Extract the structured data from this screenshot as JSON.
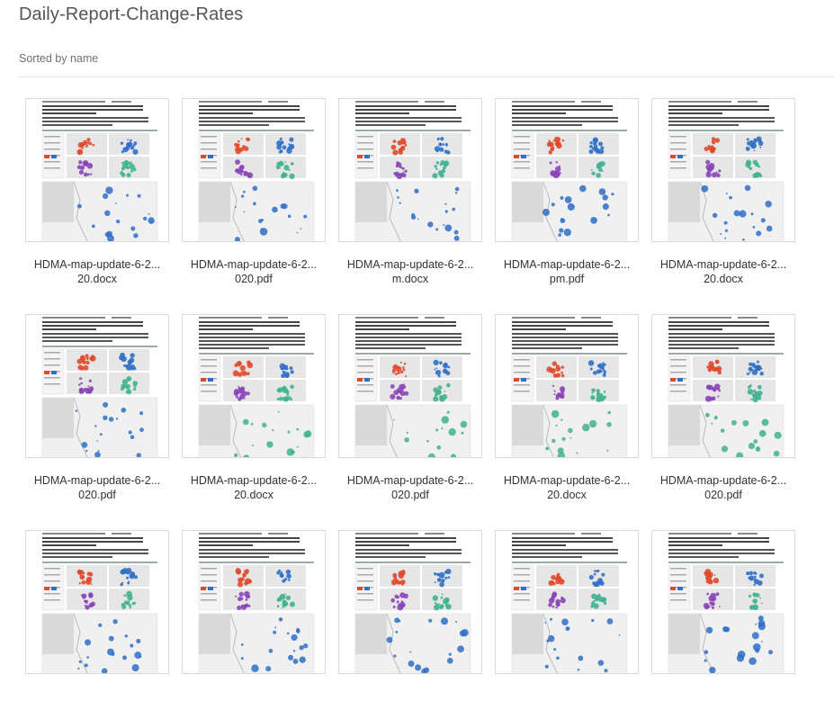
{
  "folder": {
    "title": "Daily-Report-Change-Rates",
    "sort_label": "Sorted by name"
  },
  "files": [
    {
      "name_line1": "HDMA-map-update-6-2...",
      "name_line2": "20.docx",
      "variant": "a",
      "icon": "document-thumbnail"
    },
    {
      "name_line1": "HDMA-map-update-6-2...",
      "name_line2": "020.pdf",
      "variant": "a",
      "icon": "document-thumbnail"
    },
    {
      "name_line1": "HDMA-map-update-6-2...",
      "name_line2": "m.docx",
      "variant": "b",
      "icon": "document-thumbnail"
    },
    {
      "name_line1": "HDMA-map-update-6-2...",
      "name_line2": "pm.pdf",
      "variant": "b",
      "icon": "document-thumbnail"
    },
    {
      "name_line1": "HDMA-map-update-6-2...",
      "name_line2": "20.docx",
      "variant": "c",
      "icon": "document-thumbnail"
    },
    {
      "name_line1": "HDMA-map-update-6-2...",
      "name_line2": "020.pdf",
      "variant": "c",
      "icon": "document-thumbnail"
    },
    {
      "name_line1": "HDMA-map-update-6-2...",
      "name_line2": "20.docx",
      "variant": "d",
      "icon": "document-thumbnail"
    },
    {
      "name_line1": "HDMA-map-update-6-2...",
      "name_line2": "020.pdf",
      "variant": "d",
      "icon": "document-thumbnail"
    },
    {
      "name_line1": "HDMA-map-update-6-2...",
      "name_line2": "20.docx",
      "variant": "e",
      "icon": "document-thumbnail"
    },
    {
      "name_line1": "HDMA-map-update-6-2...",
      "name_line2": "020.pdf",
      "variant": "e",
      "icon": "document-thumbnail"
    },
    {
      "name_line1": "",
      "name_line2": "",
      "variant": "a",
      "icon": "document-thumbnail"
    },
    {
      "name_line1": "",
      "name_line2": "",
      "variant": "a",
      "icon": "document-thumbnail"
    },
    {
      "name_line1": "",
      "name_line2": "",
      "variant": "b",
      "icon": "document-thumbnail"
    },
    {
      "name_line1": "",
      "name_line2": "",
      "variant": "b",
      "icon": "document-thumbnail"
    },
    {
      "name_line1": "",
      "name_line2": "",
      "variant": "c",
      "icon": "document-thumbnail"
    }
  ],
  "colors": {
    "red": "#e04a2c",
    "blue": "#2f6fc6",
    "purple": "#8a45b8",
    "teal": "#3fb28f",
    "panel": "#e6e6e6",
    "text_line": "#444444"
  }
}
